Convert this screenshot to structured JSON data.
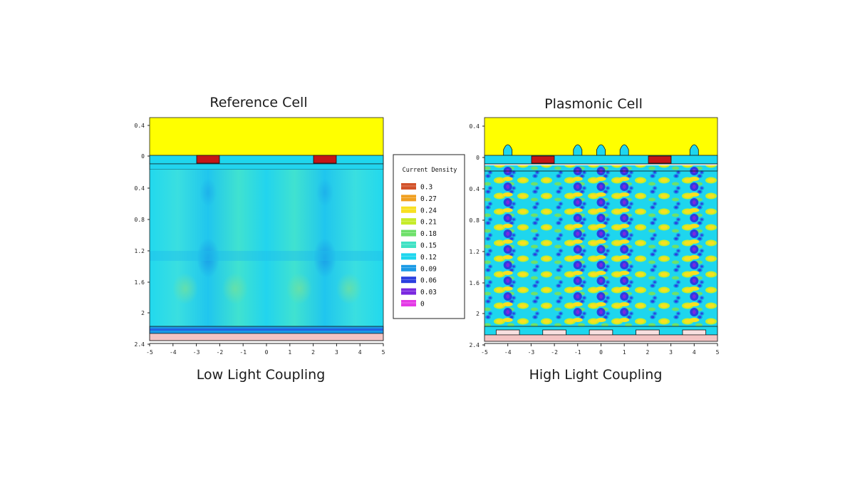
{
  "chart_data": [
    {
      "type": "heatmap",
      "title": "Reference Cell",
      "caption": "Low Light Coupling",
      "xlim": [
        -5,
        5
      ],
      "x_ticks": [
        "-5",
        "-4",
        "-3",
        "-2",
        "-1",
        "0",
        "1",
        "2",
        "3",
        "4",
        "5"
      ],
      "y_ticks_upper": [
        "0.4",
        "0"
      ],
      "y_ticks_lower": [
        "0.4",
        "0.8",
        "1.2",
        "1.6",
        "2",
        "2.4"
      ],
      "contacts_x": [
        [
          -3,
          -2
        ],
        [
          2,
          3
        ]
      ],
      "pattern": "uniform",
      "colors": {
        "top_layer": "#ffff00",
        "field": "#1ed6ee",
        "contact": "#c41616",
        "substrate": "#f4c4c4"
      }
    },
    {
      "type": "heatmap",
      "title": "Plasmonic Cell",
      "caption": "High Light Coupling",
      "xlim": [
        -5,
        5
      ],
      "x_ticks": [
        "-5",
        "-4",
        "-3",
        "-2",
        "-1",
        "0",
        "1",
        "2",
        "3",
        "4",
        "5"
      ],
      "y_ticks_upper": [
        "0.4",
        "0"
      ],
      "y_ticks_lower": [
        "0.4",
        "0.8",
        "1.2",
        "1.6",
        "2",
        "2.4"
      ],
      "contacts_x": [
        [
          -3,
          -2
        ],
        [
          2,
          3
        ]
      ],
      "nanoparticles_x": [
        -4,
        -1,
        0,
        1,
        4
      ],
      "back_pads_x": [
        [
          -4.5,
          -3.5
        ],
        [
          -2.5,
          -1.5
        ],
        [
          -0.5,
          0.5
        ],
        [
          1.5,
          2.5
        ],
        [
          3.5,
          4.5
        ]
      ],
      "pattern": "interference",
      "colors": {
        "top_layer": "#ffff00",
        "field": "#1ed6ee",
        "contact": "#c41616",
        "substrate": "#f4c4c4"
      }
    }
  ],
  "legend": {
    "title": "Current Density",
    "levels": [
      {
        "label": "0.3",
        "color": "#d2522a"
      },
      {
        "label": "0.27",
        "color": "#f0a020"
      },
      {
        "label": "0.24",
        "color": "#f8e020"
      },
      {
        "label": "0.21",
        "color": "#c6ec28"
      },
      {
        "label": "0.18",
        "color": "#6ee06a"
      },
      {
        "label": "0.15",
        "color": "#40e2c4"
      },
      {
        "label": "0.12",
        "color": "#1ed6ee"
      },
      {
        "label": "0.09",
        "color": "#1a9ae6"
      },
      {
        "label": "0.06",
        "color": "#2a3ee0"
      },
      {
        "label": "0.03",
        "color": "#7a28e0"
      },
      {
        "label": "0",
        "color": "#e43ae6"
      }
    ]
  }
}
